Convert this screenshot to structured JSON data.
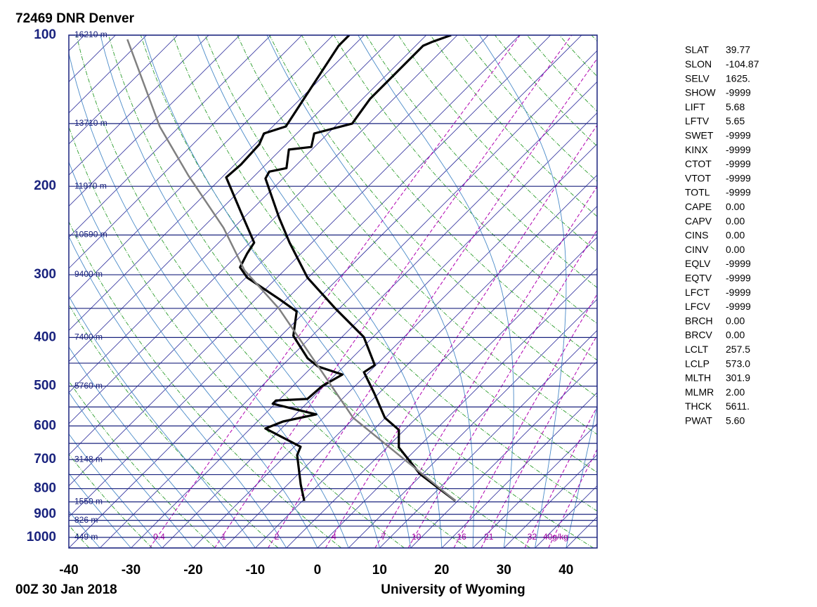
{
  "chart_data": {
    "type": "skewt",
    "title": "72469 DNR Denver",
    "footer_left": "00Z 30 Jan 2018",
    "footer_right": "University of Wyoming",
    "xlim": [
      -40,
      45
    ],
    "ylim": [
      1050,
      100
    ],
    "log_y": true,
    "xticks": [
      -40,
      -30,
      -20,
      -10,
      0,
      10,
      20,
      30,
      40
    ],
    "yticks": [
      100,
      200,
      300,
      400,
      500,
      600,
      700,
      800,
      900,
      1000
    ],
    "isobars": [
      100,
      150,
      200,
      250,
      300,
      350,
      400,
      450,
      500,
      550,
      600,
      650,
      700,
      750,
      800,
      850,
      900,
      925,
      950,
      1000,
      1050
    ],
    "isotherm_interval": 5,
    "dry_adiabat_interval": 10,
    "moist_adiabat_interval": 5,
    "height_labels": [
      {
        "pressure": 100,
        "label": "16210 m"
      },
      {
        "pressure": 150,
        "label": "13710 m"
      },
      {
        "pressure": 200,
        "label": "11970 m"
      },
      {
        "pressure": 250,
        "label": "10590 m"
      },
      {
        "pressure": 300,
        "label": "9400 m"
      },
      {
        "pressure": 400,
        "label": "7400 m"
      },
      {
        "pressure": 500,
        "label": "5760 m"
      },
      {
        "pressure": 700,
        "label": "3148 m"
      },
      {
        "pressure": 850,
        "label": "1550 m"
      },
      {
        "pressure": 925,
        "label": "826 m"
      },
      {
        "pressure": 1000,
        "label": "449 m"
      }
    ],
    "mixing_ratios": [
      {
        "value": 0.4,
        "label": "0.4"
      },
      1,
      2,
      4,
      7,
      10,
      16,
      21,
      32,
      {
        "value": 40,
        "label": "40g/kg"
      }
    ],
    "colors": {
      "isobar": "#1a237e",
      "isotherm": "#2a2a9a",
      "dry_adiabat": "#2e9e2e",
      "moist_adiabat": "#4a8ac8",
      "mixing_ratio": "#b000b0"
    },
    "series": [
      {
        "color": "#000000",
        "width": 3.2,
        "pressure": [
          846,
          748,
          662,
          611,
          578,
          517,
          469,
          454,
          399,
          351,
          304,
          259,
          231,
          193,
          187,
          184,
          169,
          167,
          157,
          150,
          134,
          105,
          103,
          100
        ],
        "values": [
          14.6,
          4.6,
          -3.1,
          -5.9,
          -10.1,
          -15.7,
          -20.8,
          -20.2,
          -26.5,
          -35.5,
          -45.1,
          -53.6,
          -59.3,
          -67.8,
          -68.3,
          -66.1,
          -68.7,
          -65.5,
          -67.2,
          -62.7,
          -63.8,
          -63.8,
          -62.9,
          -61.0
        ]
      },
      {
        "color": "#000000",
        "width": 3.2,
        "pressure": [
          846,
          785,
          686,
          660,
          607,
          588,
          569,
          542,
          534,
          530,
          500,
          474,
          457,
          440,
          397,
          355,
          335,
          304,
          290,
          272,
          259,
          224,
          192,
          181,
          165,
          157,
          152,
          105,
          100
        ],
        "values": [
          -9.7,
          -12.9,
          -18.2,
          -19.0,
          -27.6,
          -25.9,
          -21.7,
          -30.4,
          -30.4,
          -25.6,
          -25.3,
          -23.9,
          -29.1,
          -32.1,
          -38.0,
          -41.4,
          -46.3,
          -54.8,
          -57.6,
          -58.7,
          -59.3,
          -66.6,
          -74.3,
          -74.0,
          -74.3,
          -75.3,
          -72.9,
          -77.4,
          -77.4
        ]
      },
      {
        "color": "#808080",
        "width": 2.5,
        "pressure": [
          846,
          578,
          351,
          294,
          242,
          190,
          152,
          102
        ],
        "values": [
          14.6,
          -15.2,
          -44.6,
          -56.4,
          -66.6,
          -80.8,
          -93.2,
          -112.4
        ]
      }
    ]
  },
  "stats": {
    "rows": [
      [
        "SLAT",
        "39.77"
      ],
      [
        "SLON",
        "-104.87"
      ],
      [
        "SELV",
        "1625."
      ],
      [
        "SHOW",
        "-9999"
      ],
      [
        "LIFT",
        "5.68"
      ],
      [
        "LFTV",
        "5.65"
      ],
      [
        "SWET",
        "-9999"
      ],
      [
        "KINX",
        "-9999"
      ],
      [
        "CTOT",
        "-9999"
      ],
      [
        "VTOT",
        "-9999"
      ],
      [
        "TOTL",
        "-9999"
      ],
      [
        "CAPE",
        "0.00"
      ],
      [
        "CAPV",
        "0.00"
      ],
      [
        "CINS",
        "0.00"
      ],
      [
        "CINV",
        "0.00"
      ],
      [
        "EQLV",
        "-9999"
      ],
      [
        "EQTV",
        "-9999"
      ],
      [
        "LFCT",
        "-9999"
      ],
      [
        "LFCV",
        "-9999"
      ],
      [
        "BRCH",
        "0.00"
      ],
      [
        "BRCV",
        "0.00"
      ],
      [
        "LCLT",
        "257.5"
      ],
      [
        "LCLP",
        "573.0"
      ],
      [
        "MLTH",
        "301.9"
      ],
      [
        "MLMR",
        "2.00"
      ],
      [
        "THCK",
        "5611."
      ],
      [
        "PWAT",
        "5.60"
      ]
    ]
  }
}
